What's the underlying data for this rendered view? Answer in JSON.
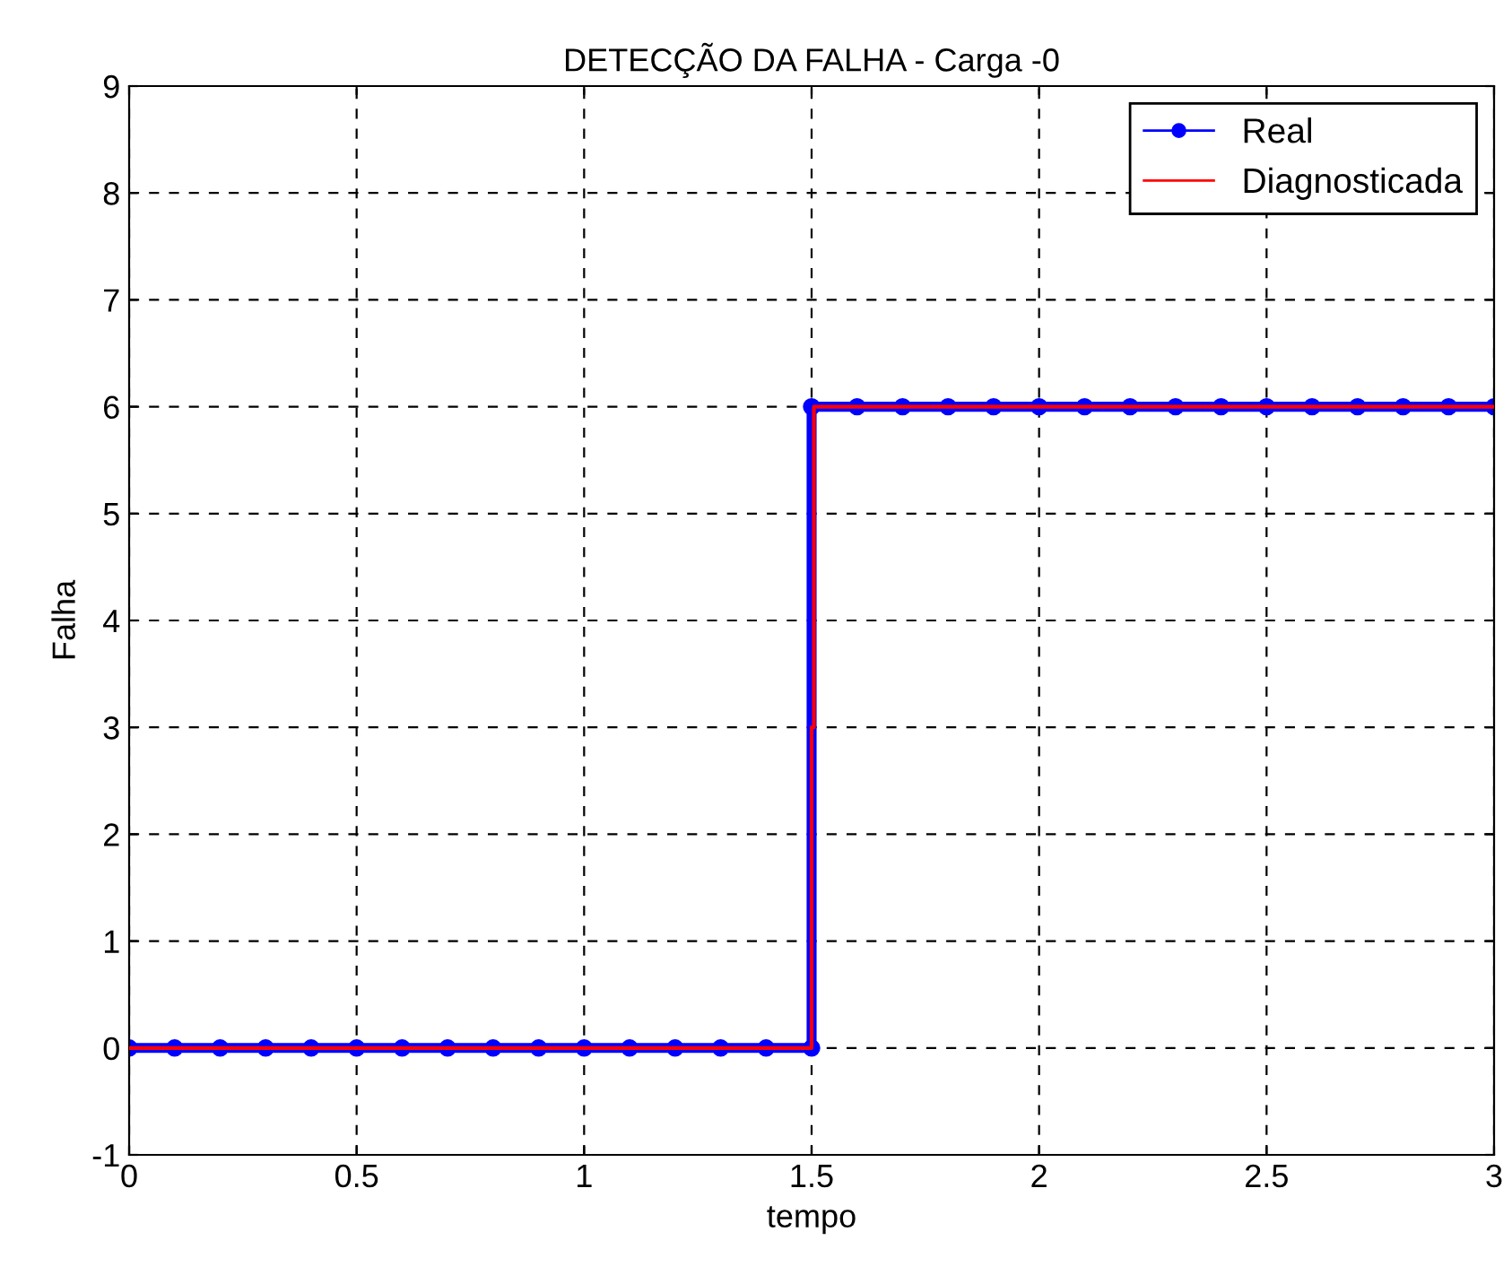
{
  "chart_data": {
    "type": "line",
    "title": "DETECÇÃO DA FALHA - Carga -0",
    "xlabel": "tempo",
    "ylabel": "Falha",
    "xlim": [
      0,
      3
    ],
    "xticks": [
      0,
      0.5,
      1,
      1.5,
      2,
      2.5,
      3
    ],
    "ylim": [
      -1,
      9
    ],
    "yticks": [
      -1,
      0,
      1,
      2,
      3,
      4,
      5,
      6,
      7,
      8,
      9
    ],
    "grid": true,
    "legend": "top right",
    "series": [
      {
        "name": "Real",
        "color": "#0000ff",
        "marker": "circle",
        "x": [
          0,
          0.1,
          0.2,
          0.3,
          0.4,
          0.5,
          0.6,
          0.7,
          0.8,
          0.9,
          1.0,
          1.1,
          1.2,
          1.3,
          1.4,
          1.5,
          1.5,
          1.6,
          1.7,
          1.8,
          1.9,
          2.0,
          2.1,
          2.2,
          2.3,
          2.4,
          2.5,
          2.6,
          2.7,
          2.8,
          2.9,
          3.0
        ],
        "values": [
          0,
          0,
          0,
          0,
          0,
          0,
          0,
          0,
          0,
          0,
          0,
          0,
          0,
          0,
          0,
          0,
          6,
          6,
          6,
          6,
          6,
          6,
          6,
          6,
          6,
          6,
          6,
          6,
          6,
          6,
          6,
          6
        ]
      },
      {
        "name": "Diagnosticada",
        "color": "#ff0000",
        "marker": "none",
        "x": [
          0,
          1.5,
          1.5,
          1.505,
          1.505,
          3
        ],
        "values": [
          0,
          0,
          3,
          3,
          6,
          6
        ]
      }
    ]
  }
}
